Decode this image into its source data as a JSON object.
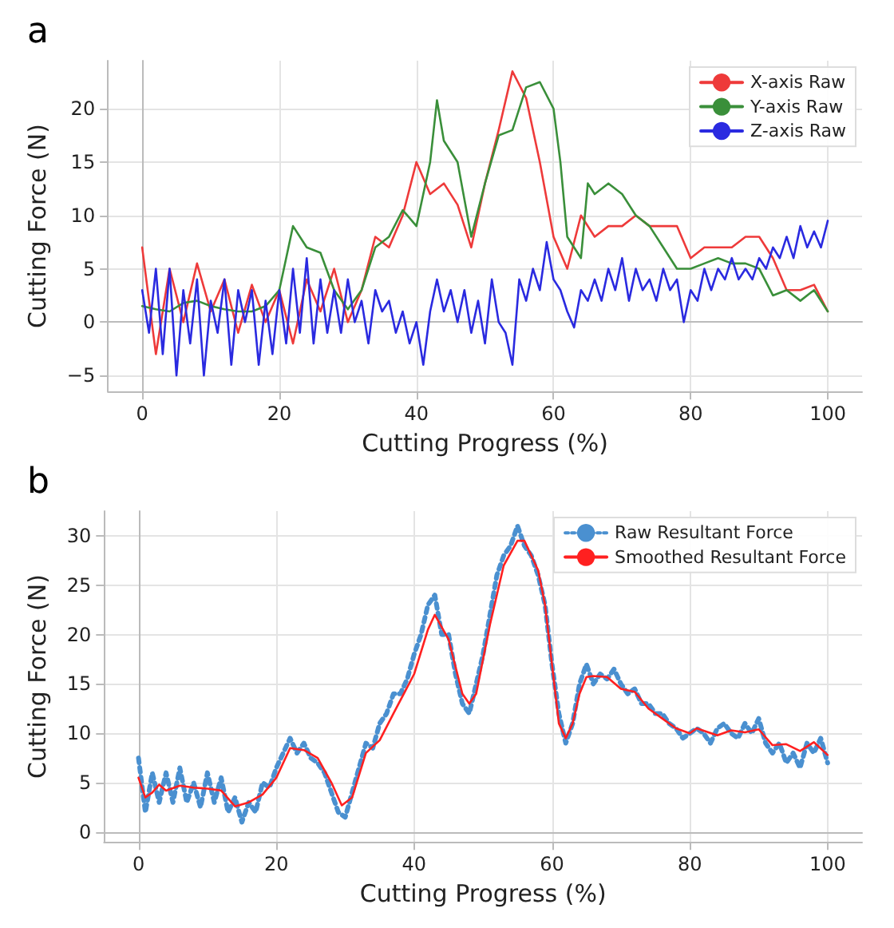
{
  "chart_data": [
    {
      "type": "line",
      "title": "a",
      "xlabel": "Cutting Progress (%)",
      "ylabel": "Cutting Force (N)",
      "xlim": [
        -5,
        105
      ],
      "ylim": [
        -6.5,
        24.5
      ],
      "xticks": [
        0,
        20,
        40,
        60,
        80,
        100
      ],
      "yticks": [
        {
          "value": -5,
          "label": "−5"
        },
        0,
        5,
        10,
        15,
        20
      ],
      "grid": true,
      "legend": "top right",
      "line_style": "solid",
      "series": [
        {
          "name": "X-axis Raw",
          "color": "#ee3a3a",
          "x": [
            0,
            2,
            4,
            6,
            8,
            10,
            12,
            14,
            16,
            18,
            20,
            22,
            24,
            26,
            28,
            30,
            32,
            34,
            36,
            38,
            40,
            42,
            44,
            46,
            48,
            50,
            52,
            54,
            56,
            58,
            60,
            62,
            64,
            66,
            68,
            70,
            72,
            74,
            76,
            78,
            80,
            82,
            84,
            86,
            88,
            90,
            92,
            94,
            96,
            98,
            100
          ],
          "values": [
            7,
            -3,
            5,
            0,
            5.5,
            1,
            4,
            -1,
            3.5,
            0,
            3,
            -2,
            4,
            1,
            5,
            0,
            3,
            8,
            7,
            10,
            15,
            12,
            13,
            11,
            7,
            13,
            18,
            23.5,
            21,
            15,
            8,
            5,
            10,
            8,
            9,
            9,
            10,
            9,
            9,
            9,
            6,
            7,
            7,
            7,
            8,
            8,
            6,
            3,
            3,
            3.5,
            1
          ]
        },
        {
          "name": "Y-axis Raw",
          "color": "#3a8f3a",
          "x": [
            0,
            2,
            4,
            6,
            8,
            10,
            12,
            14,
            16,
            18,
            20,
            21,
            22,
            24,
            26,
            28,
            30,
            32,
            34,
            36,
            38,
            40,
            42,
            43,
            44,
            46,
            48,
            50,
            52,
            54,
            56,
            58,
            60,
            61,
            62,
            64,
            65,
            66,
            68,
            70,
            72,
            74,
            76,
            78,
            80,
            82,
            84,
            86,
            88,
            90,
            92,
            94,
            96,
            98,
            100
          ],
          "values": [
            1.5,
            1.2,
            1,
            1.8,
            2,
            1.5,
            1.2,
            1,
            1,
            1.5,
            3,
            6,
            9,
            7,
            6.5,
            3,
            1.2,
            3,
            7,
            8,
            10.5,
            9,
            15,
            20.8,
            17,
            15,
            8,
            13,
            17.5,
            18,
            22,
            22.5,
            20,
            15,
            8,
            6,
            13,
            12,
            13,
            12,
            10,
            9,
            7,
            5,
            5,
            5.5,
            6,
            5.5,
            5.5,
            5,
            2.5,
            3,
            2,
            3,
            1
          ]
        },
        {
          "name": "Z-axis Raw",
          "color": "#2a2ae0",
          "x": [
            0,
            1,
            2,
            3,
            4,
            5,
            6,
            7,
            8,
            9,
            10,
            11,
            12,
            13,
            14,
            15,
            16,
            17,
            18,
            19,
            20,
            21,
            22,
            23,
            24,
            25,
            26,
            27,
            28,
            29,
            30,
            31,
            32,
            33,
            34,
            35,
            36,
            37,
            38,
            39,
            40,
            41,
            42,
            43,
            44,
            45,
            46,
            47,
            48,
            49,
            50,
            51,
            52,
            53,
            54,
            55,
            56,
            57,
            58,
            59,
            60,
            61,
            62,
            63,
            64,
            65,
            66,
            67,
            68,
            69,
            70,
            71,
            72,
            73,
            74,
            75,
            76,
            77,
            78,
            79,
            80,
            81,
            82,
            83,
            84,
            85,
            86,
            87,
            88,
            89,
            90,
            91,
            92,
            93,
            94,
            95,
            96,
            97,
            98,
            99,
            100
          ],
          "values": [
            3,
            -1,
            5,
            -3,
            5,
            -5,
            3,
            -2,
            4,
            -5,
            2,
            -1,
            4,
            -4,
            3,
            0,
            3,
            -4,
            2,
            -3,
            3,
            -2,
            5,
            -1,
            6,
            -2,
            4,
            -1,
            3,
            -1,
            4,
            0,
            2,
            -2,
            3,
            1,
            2,
            -1,
            1,
            -2,
            0,
            -4,
            1,
            4,
            1,
            3,
            0,
            3,
            -1,
            2,
            -2,
            4,
            0,
            -1,
            -4,
            4,
            2,
            5,
            3,
            7.5,
            4,
            3,
            1,
            -0.5,
            3,
            2,
            4,
            2,
            5,
            3,
            6,
            2,
            5,
            3,
            4,
            2,
            5,
            3,
            4,
            0,
            3,
            2,
            5,
            3,
            5,
            4,
            6,
            4,
            5,
            4,
            6,
            5,
            7,
            6,
            8,
            6,
            9,
            7,
            8.5,
            7,
            9.5
          ]
        }
      ]
    },
    {
      "type": "line",
      "title": "b",
      "xlabel": "Cutting Progress (%)",
      "ylabel": "Cutting Force (N)",
      "xlim": [
        -5,
        105
      ],
      "ylim": [
        -1,
        32.5
      ],
      "xticks": [
        0,
        20,
        40,
        60,
        80,
        100
      ],
      "yticks": [
        0,
        5,
        10,
        15,
        20,
        25,
        30
      ],
      "grid": true,
      "legend": "top right",
      "series": [
        {
          "name": "Raw Resultant Force",
          "color": "#4a90d0",
          "line_style": "dotted",
          "x": [
            0,
            1,
            2,
            3,
            4,
            5,
            6,
            7,
            8,
            9,
            10,
            11,
            12,
            13,
            14,
            15,
            16,
            17,
            18,
            19,
            20,
            21,
            22,
            23,
            24,
            25,
            26,
            27,
            28,
            29,
            30,
            31,
            32,
            33,
            34,
            35,
            36,
            37,
            38,
            39,
            40,
            41,
            42,
            43,
            44,
            45,
            46,
            47,
            48,
            49,
            50,
            51,
            52,
            53,
            54,
            55,
            56,
            57,
            58,
            59,
            60,
            61,
            62,
            63,
            64,
            65,
            66,
            67,
            68,
            69,
            70,
            71,
            72,
            73,
            74,
            75,
            76,
            77,
            78,
            79,
            80,
            81,
            82,
            83,
            84,
            85,
            86,
            87,
            88,
            89,
            90,
            91,
            92,
            93,
            94,
            95,
            96,
            97,
            98,
            99,
            100
          ],
          "values": [
            7.5,
            2,
            6,
            3,
            6,
            3,
            6.5,
            3,
            5,
            2.5,
            6,
            3,
            5.5,
            2,
            3.5,
            1,
            3,
            2,
            5,
            4.5,
            6.5,
            8,
            9.5,
            8,
            9,
            7.5,
            7,
            6,
            4,
            2,
            1.5,
            4,
            6.5,
            9,
            8.5,
            11,
            12,
            14,
            14,
            15.5,
            18,
            20,
            23,
            24,
            20,
            20,
            16,
            13,
            12,
            15,
            18,
            22,
            26,
            28,
            29,
            31,
            29,
            28,
            26,
            23,
            17,
            12,
            9,
            11,
            15,
            17,
            15,
            16,
            15.5,
            16.5,
            15,
            14,
            14.5,
            13,
            13,
            12,
            12,
            11,
            10.5,
            9.5,
            10,
            10.5,
            10,
            9,
            10.5,
            11,
            10,
            9.5,
            11,
            10,
            11.5,
            9,
            8,
            9,
            7,
            8,
            6.5,
            9,
            8,
            9.5,
            7
          ]
        },
        {
          "name": "Smoothed Resultant Force",
          "color": "#ff2020",
          "line_style": "solid",
          "x": [
            0,
            1,
            2,
            3,
            4,
            6,
            8,
            10,
            12,
            14,
            16,
            18,
            20,
            22,
            24,
            26,
            28,
            29.5,
            31,
            33,
            35,
            37,
            40,
            42,
            43,
            45,
            47,
            48,
            49,
            51,
            53,
            55,
            56,
            58,
            59,
            60,
            61,
            62,
            63,
            64,
            65,
            66,
            68,
            70,
            72,
            74,
            76,
            78,
            80,
            81,
            84,
            86,
            88,
            90,
            92,
            94,
            96,
            98,
            100
          ],
          "values": [
            5.5,
            3.5,
            4,
            4.8,
            4.2,
            4.7,
            4.5,
            4.4,
            4.2,
            2.6,
            3,
            3.8,
            5.5,
            8.5,
            8.3,
            7.5,
            5,
            2.7,
            3.5,
            8,
            9.3,
            12,
            16,
            20.5,
            22,
            19.5,
            14,
            13,
            14,
            21,
            27,
            29.5,
            29.5,
            26.5,
            23,
            17,
            11,
            9.5,
            11,
            14,
            15.7,
            15.8,
            15.7,
            14.5,
            14.2,
            12.5,
            11.5,
            10.5,
            10,
            10.5,
            9.8,
            10.3,
            10.1,
            10.4,
            8.8,
            8.9,
            8.2,
            9.1,
            7.8
          ]
        }
      ]
    }
  ]
}
